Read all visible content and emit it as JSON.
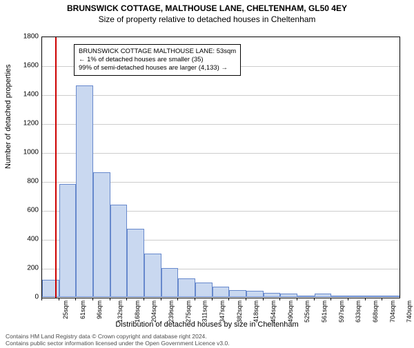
{
  "title": "BRUNSWICK COTTAGE, MALTHOUSE LANE, CHELTENHAM, GL50 4EY",
  "subtitle": "Size of property relative to detached houses in Cheltenham",
  "ylabel": "Number of detached properties",
  "xlabel": "Distribution of detached houses by size in Cheltenham",
  "footer_line1": "Contains HM Land Registry data © Crown copyright and database right 2024.",
  "footer_line2": "Contains public sector information licensed under the Open Government Licence v3.0.",
  "chart": {
    "type": "histogram",
    "ymin": 0,
    "ymax": 1800,
    "ytick_step": 200,
    "yticks": [
      0,
      200,
      400,
      600,
      800,
      1000,
      1200,
      1400,
      1600,
      1800
    ],
    "xtick_labels": [
      "25sqm",
      "61sqm",
      "96sqm",
      "132sqm",
      "168sqm",
      "204sqm",
      "239sqm",
      "275sqm",
      "311sqm",
      "347sqm",
      "382sqm",
      "418sqm",
      "454sqm",
      "490sqm",
      "525sqm",
      "561sqm",
      "597sqm",
      "633sqm",
      "668sqm",
      "704sqm",
      "740sqm"
    ],
    "values": [
      120,
      780,
      1460,
      860,
      640,
      470,
      300,
      200,
      130,
      100,
      70,
      50,
      45,
      30,
      22,
      10,
      25,
      0,
      8,
      0,
      0
    ],
    "bar_fill": "#c9d8f0",
    "bar_stroke": "#6688cc",
    "grid_color": "#cccccc",
    "axis_color": "#000000",
    "marker_line_color": "#cc0000",
    "marker_x_sqm": 53,
    "xmin_sqm": 25,
    "xbin_sqm": 35.75,
    "annotation": {
      "line1": "BRUNSWICK COTTAGE MALTHOUSE LANE: 53sqm",
      "line2": "← 1% of detached houses are smaller (35)",
      "line3": "99% of semi-detached houses are larger (4,133) →"
    }
  }
}
